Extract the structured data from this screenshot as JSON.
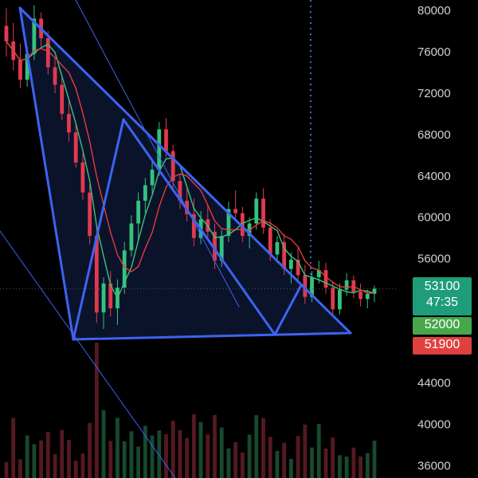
{
  "chart_data": {
    "type": "candlestick",
    "title": "",
    "y_axis": {
      "ticks": [
        "80000",
        "76000",
        "72000",
        "68000",
        "64000",
        "60000",
        "56000",
        "44000",
        "40000",
        "36000"
      ],
      "tick_values": [
        80000,
        76000,
        72000,
        68000,
        64000,
        60000,
        56000,
        44000,
        40000,
        36000
      ],
      "range": [
        34800,
        81000
      ],
      "position": "right"
    },
    "price_badges": [
      {
        "name": "last",
        "label": "53100",
        "sub": "47:35",
        "value": 53100,
        "color": "#1f9c7a"
      },
      {
        "name": "level-a",
        "label": "52000",
        "value": 52000,
        "color": "#46a84a"
      },
      {
        "name": "level-b",
        "label": "51900",
        "value": 51900,
        "color": "#e0413f"
      }
    ],
    "colors": {
      "up": "#35c27d",
      "down": "#e13a4e",
      "ma_fast": "#3fc27a",
      "ma_slow": "#e83a3a",
      "pattern": "#3d63f0",
      "pattern_fill": "#0c1530",
      "crosshair": "#3d63f0"
    },
    "candle_approx": [
      {
        "o": 78500,
        "h": 80200,
        "l": 75500,
        "c": 77000
      },
      {
        "o": 77000,
        "h": 78800,
        "l": 74200,
        "c": 75200
      },
      {
        "o": 75200,
        "h": 76800,
        "l": 72500,
        "c": 73300
      },
      {
        "o": 73300,
        "h": 76500,
        "l": 72600,
        "c": 75800
      },
      {
        "o": 75800,
        "h": 80500,
        "l": 75200,
        "c": 79200
      },
      {
        "o": 79200,
        "h": 79800,
        "l": 76500,
        "c": 77300
      },
      {
        "o": 77300,
        "h": 78000,
        "l": 73800,
        "c": 74500
      },
      {
        "o": 74500,
        "h": 75500,
        "l": 72000,
        "c": 72800
      },
      {
        "o": 72800,
        "h": 73600,
        "l": 69400,
        "c": 70000
      },
      {
        "o": 70000,
        "h": 71400,
        "l": 67300,
        "c": 68200
      },
      {
        "o": 68200,
        "h": 69000,
        "l": 64800,
        "c": 65300
      },
      {
        "o": 65300,
        "h": 66200,
        "l": 61700,
        "c": 62400
      },
      {
        "o": 62400,
        "h": 63200,
        "l": 57400,
        "c": 58200
      },
      {
        "o": 58200,
        "h": 59000,
        "l": 49800,
        "c": 50800
      },
      {
        "o": 50800,
        "h": 54200,
        "l": 49200,
        "c": 53600
      },
      {
        "o": 53600,
        "h": 54800,
        "l": 50400,
        "c": 51200
      },
      {
        "o": 51200,
        "h": 54000,
        "l": 49600,
        "c": 53200
      },
      {
        "o": 53200,
        "h": 57600,
        "l": 52600,
        "c": 56800
      },
      {
        "o": 56800,
        "h": 60200,
        "l": 56200,
        "c": 59400
      },
      {
        "o": 59400,
        "h": 62400,
        "l": 57800,
        "c": 61600
      },
      {
        "o": 61600,
        "h": 63800,
        "l": 60400,
        "c": 63100
      },
      {
        "o": 63100,
        "h": 65400,
        "l": 62200,
        "c": 64600
      },
      {
        "o": 64600,
        "h": 69200,
        "l": 64000,
        "c": 68500
      },
      {
        "o": 68500,
        "h": 69600,
        "l": 65800,
        "c": 66400
      },
      {
        "o": 66400,
        "h": 67000,
        "l": 62800,
        "c": 63500
      },
      {
        "o": 63500,
        "h": 64200,
        "l": 60800,
        "c": 61600
      },
      {
        "o": 61600,
        "h": 62800,
        "l": 59600,
        "c": 60300
      },
      {
        "o": 60300,
        "h": 61800,
        "l": 57200,
        "c": 58000
      },
      {
        "o": 58000,
        "h": 60600,
        "l": 57400,
        "c": 59800
      },
      {
        "o": 59800,
        "h": 61200,
        "l": 57800,
        "c": 58600
      },
      {
        "o": 58600,
        "h": 59400,
        "l": 55000,
        "c": 55800
      },
      {
        "o": 55800,
        "h": 58800,
        "l": 55200,
        "c": 58200
      },
      {
        "o": 58200,
        "h": 61500,
        "l": 57600,
        "c": 60800
      },
      {
        "o": 60800,
        "h": 62600,
        "l": 59600,
        "c": 60400
      },
      {
        "o": 60400,
        "h": 61000,
        "l": 57600,
        "c": 58200
      },
      {
        "o": 58200,
        "h": 60000,
        "l": 57000,
        "c": 59400
      },
      {
        "o": 59400,
        "h": 62400,
        "l": 58800,
        "c": 61800
      },
      {
        "o": 61800,
        "h": 62800,
        "l": 58400,
        "c": 59000
      },
      {
        "o": 59000,
        "h": 59800,
        "l": 55800,
        "c": 56400
      },
      {
        "o": 56400,
        "h": 58200,
        "l": 55600,
        "c": 57600
      },
      {
        "o": 57600,
        "h": 58400,
        "l": 54400,
        "c": 55000
      },
      {
        "o": 55000,
        "h": 56600,
        "l": 53600,
        "c": 55900
      },
      {
        "o": 55900,
        "h": 57200,
        "l": 53800,
        "c": 54400
      },
      {
        "o": 54400,
        "h": 55400,
        "l": 51600,
        "c": 52300
      },
      {
        "o": 52300,
        "h": 54800,
        "l": 51800,
        "c": 54200
      },
      {
        "o": 54200,
        "h": 55800,
        "l": 53600,
        "c": 54900
      },
      {
        "o": 54900,
        "h": 55600,
        "l": 52600,
        "c": 53200
      },
      {
        "o": 53200,
        "h": 53800,
        "l": 50400,
        "c": 51100
      },
      {
        "o": 51100,
        "h": 53600,
        "l": 50600,
        "c": 53000
      },
      {
        "o": 53000,
        "h": 54600,
        "l": 52400,
        "c": 53900
      },
      {
        "o": 53900,
        "h": 54400,
        "l": 52200,
        "c": 52800
      },
      {
        "o": 52800,
        "h": 53600,
        "l": 51400,
        "c": 52100
      },
      {
        "o": 52100,
        "h": 53000,
        "l": 51200,
        "c": 52600
      },
      {
        "o": 52600,
        "h": 53400,
        "l": 51800,
        "c": 53100
      }
    ]
  }
}
